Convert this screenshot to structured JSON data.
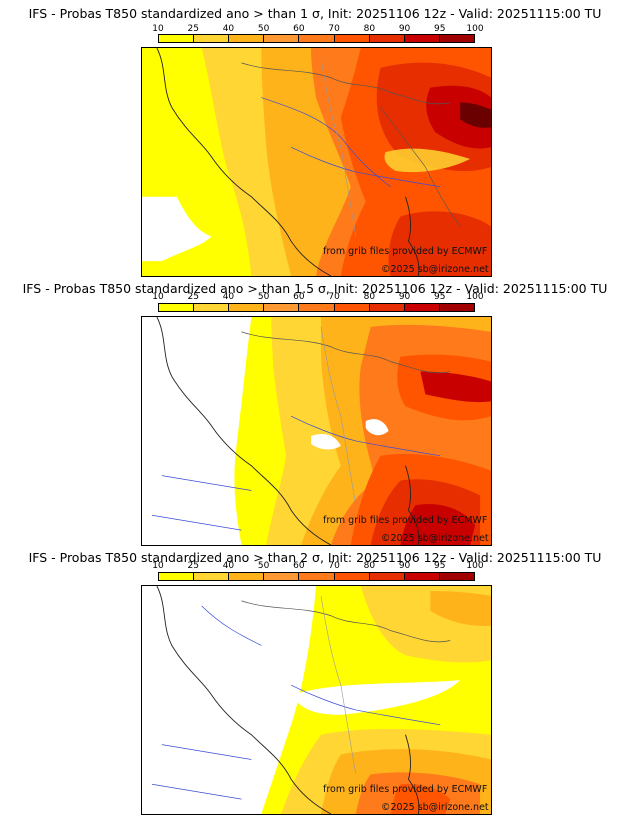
{
  "legend": {
    "ticks": [
      "10",
      "25",
      "40",
      "50",
      "60",
      "70",
      "80",
      "90",
      "95",
      "100"
    ],
    "colors": [
      "#ffff00",
      "#ffd633",
      "#ffb31a",
      "#ff9933",
      "#ff7a1a",
      "#ff5500",
      "#e62e00",
      "#c80000",
      "#a00000",
      "#6b0000"
    ]
  },
  "panels": [
    {
      "title": "IFS - Probas T850  standardized ano > than 1 σ, Init: 20251106 12z - Valid: 20251115:00 TU",
      "credit_source": "from grib files provided by ECMWF",
      "credit_copyright": "©2025 sb@irizone.net"
    },
    {
      "title": "IFS - Probas T850  standardized ano > than 1.5 σ, Init: 20251106 12z - Valid: 20251115:00 TU",
      "credit_source": "from grib files provided by ECMWF",
      "credit_copyright": "©2025 sb@irizone.net"
    },
    {
      "title": "IFS - Probas T850  standardized ano > than 2 σ, Init: 20251106 12z - Valid: 20251115:00 TU",
      "credit_source": "from grib files provided by ECMWF",
      "credit_copyright": "©2025 sb@irizone.net"
    }
  ]
}
